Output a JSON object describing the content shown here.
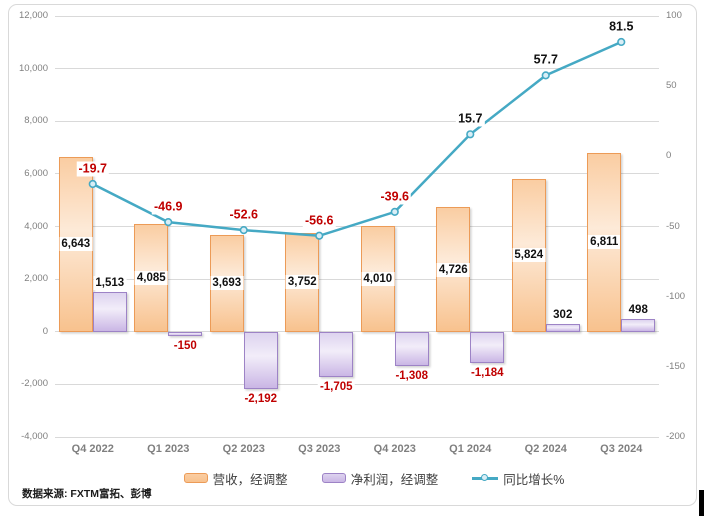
{
  "chart_data": {
    "type": "combo-bar-line",
    "title": "",
    "categories": [
      "Q4 2022",
      "Q1 2023",
      "Q2 2023",
      "Q3 2023",
      "Q4 2023",
      "Q1 2024",
      "Q2 2024",
      "Q3 2024"
    ],
    "series": [
      {
        "name": "营收，经调整",
        "kind": "bar",
        "axis": "left",
        "values": [
          6643,
          4085,
          3693,
          3752,
          4010,
          4726,
          5824,
          6811
        ],
        "border_color": "#EC9B57",
        "fill_light": "#FDEAD8",
        "fill_dark": "#F8C28E",
        "label_position": "inside-center"
      },
      {
        "name": "净利润，经调整",
        "kind": "bar",
        "axis": "left",
        "values": [
          1513,
          -150,
          -2192,
          -1705,
          -1308,
          -1184,
          302,
          498
        ],
        "border_color": "#9D83C6",
        "fill_light": "#F2EDF9",
        "fill_dark": "#CAB6E5",
        "label_position": "outside-end"
      },
      {
        "name": "同比增长%",
        "kind": "line",
        "axis": "right",
        "values": [
          -19.7,
          -46.9,
          -52.6,
          -56.6,
          -39.6,
          15.7,
          57.7,
          81.5
        ],
        "color": "#45A9C4",
        "marker_fill": "#D9EEF6",
        "label_position": "above"
      }
    ],
    "left_axis": {
      "min": -4000,
      "max": 12000,
      "step": 2000,
      "tick_labels": [
        "12,000",
        "10,000",
        "8,000",
        "6,000",
        "4,000",
        "2,000",
        "0",
        "-2,000",
        "-4,000"
      ]
    },
    "right_axis": {
      "min": -200,
      "max": 100,
      "step": 50,
      "tick_labels": [
        "100",
        "50",
        "0",
        "-50",
        "-100",
        "-150",
        "-200"
      ]
    },
    "grid": true,
    "legend_position": "bottom",
    "label_colors": {
      "positive": "#111111",
      "negative": "#C00000"
    },
    "axis_text_color": "#7F7F7F"
  },
  "source_note": "数据来源: FXTM富拓、彭博"
}
